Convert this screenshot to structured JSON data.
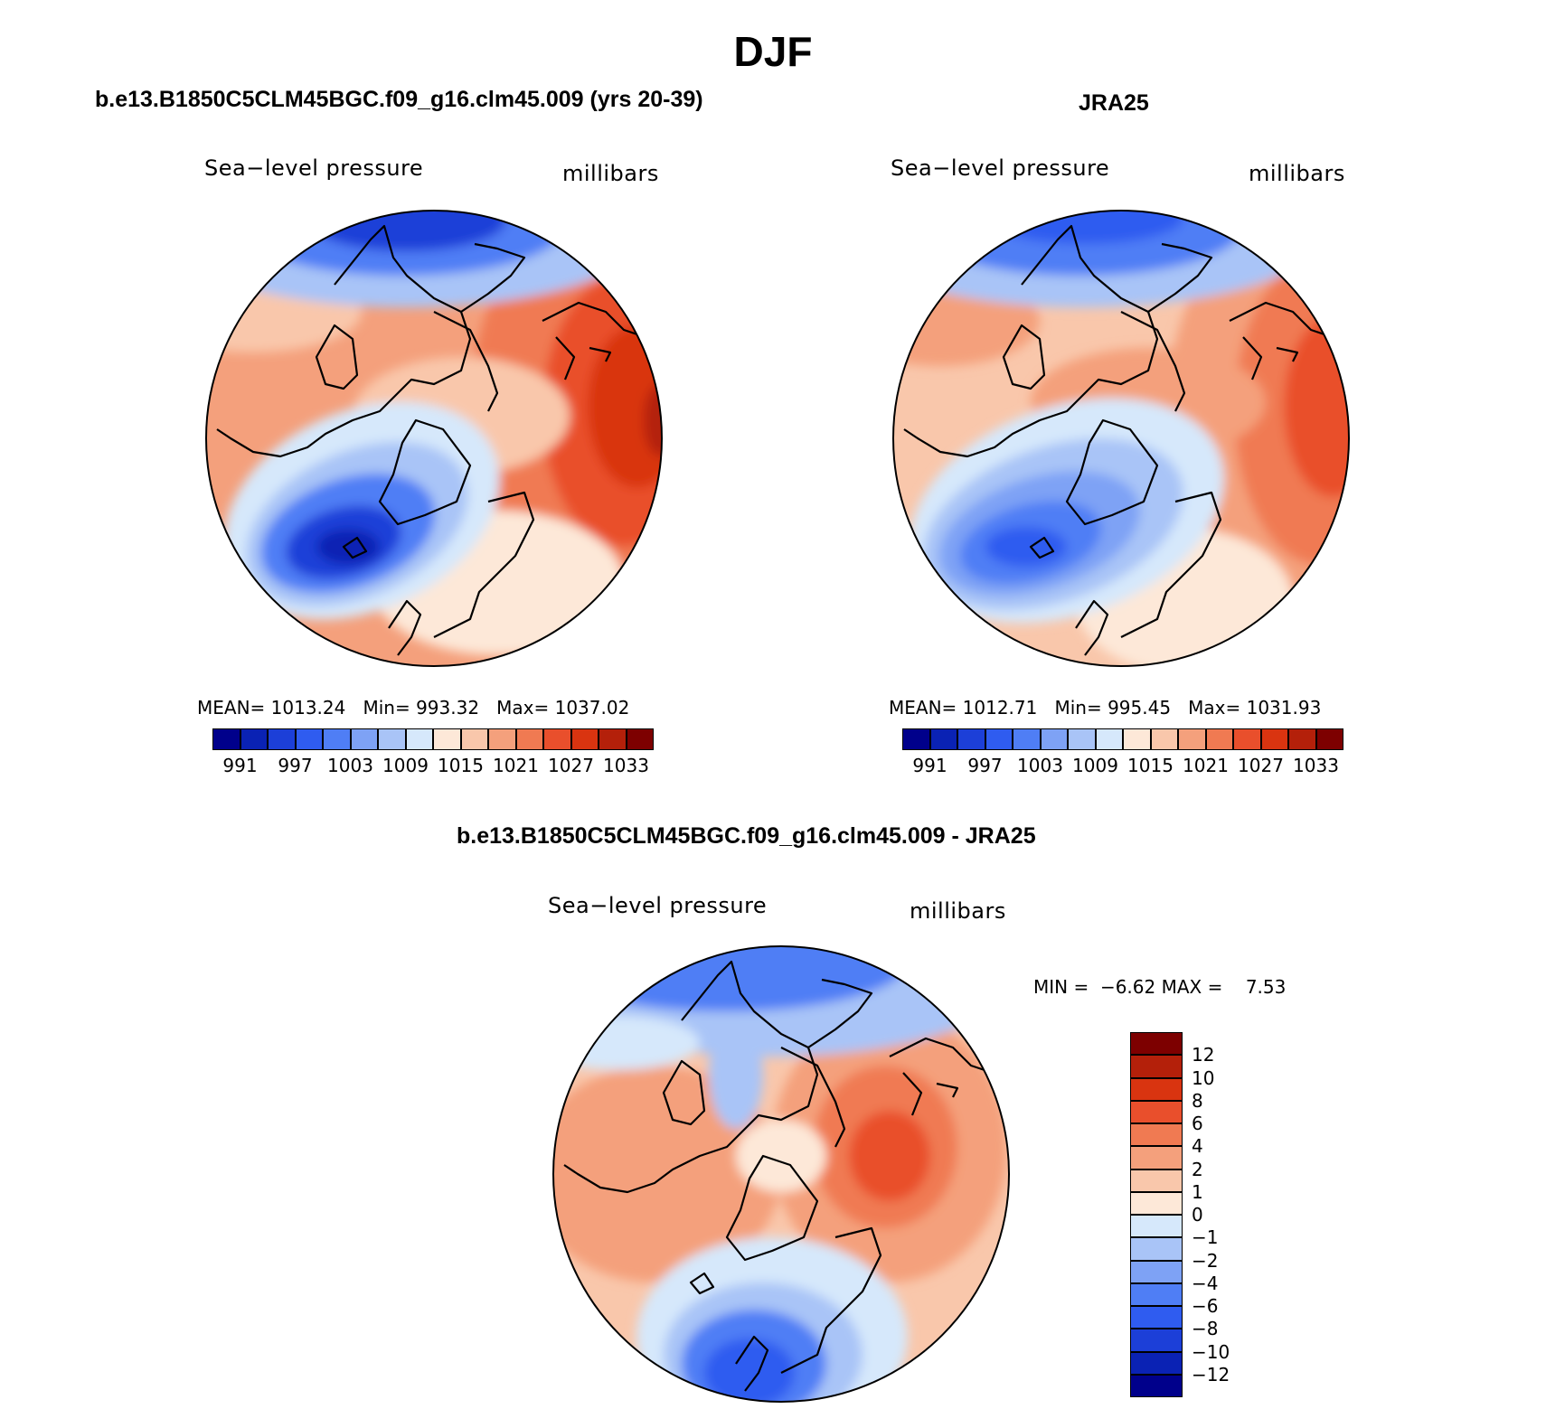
{
  "figure": {
    "season": "DJF",
    "model_title": "b.e13.B1850C5CLM45BGC.f09_g16.clm45.009 (yrs 20-39)",
    "obs_title": "JRA25",
    "diff_title": "b.e13.B1850C5CLM45BGC.f09_g16.clm45.009 - JRA25"
  },
  "panels": {
    "model": {
      "variable": "Sea−level pressure",
      "units": "millibars",
      "stats": {
        "mean_label": "MEAN=",
        "mean": "1013.24",
        "min_label": "Min=",
        "min": "993.32",
        "max_label": "Max=",
        "max": "1037.02"
      }
    },
    "obs": {
      "variable": "Sea−level pressure",
      "units": "millibars",
      "stats": {
        "mean_label": "MEAN=",
        "mean": "1012.71",
        "min_label": "Min=",
        "min": "995.45",
        "max_label": "Max=",
        "max": "1031.93"
      }
    },
    "diff": {
      "variable": "Sea−level pressure",
      "units": "millibars",
      "stats": {
        "min_label": "MIN =",
        "min": "−6.62",
        "max_label": "MAX =",
        "max": "7.53"
      }
    }
  },
  "colorbars": {
    "abs": {
      "colors": [
        "#00008b",
        "#0a22b4",
        "#1c3fd8",
        "#2f5cf0",
        "#4f7ef5",
        "#7ea2f5",
        "#a9c4f7",
        "#d6e8fb",
        "#fde8d8",
        "#f9c7ab",
        "#f4a07c",
        "#f07a52",
        "#e94f2c",
        "#d93410",
        "#b4200a",
        "#7d0000"
      ],
      "tick_labels": [
        "991",
        "997",
        "1003",
        "1009",
        "1015",
        "1021",
        "1027",
        "1033"
      ]
    },
    "diff": {
      "colors_top_to_bottom": [
        "#7d0000",
        "#b4200a",
        "#d93410",
        "#e94f2c",
        "#f07a52",
        "#f4a07c",
        "#f9c7ab",
        "#fde8d8",
        "#d6e8fb",
        "#a9c4f7",
        "#7ea2f5",
        "#4f7ef5",
        "#2f5cf0",
        "#1c3fd8",
        "#0a22b4",
        "#00008b"
      ],
      "tick_labels": [
        "12",
        "10",
        "8",
        "6",
        "4",
        "2",
        "1",
        "0",
        "−1",
        "−2",
        "−4",
        "−6",
        "−8",
        "−10",
        "−12"
      ]
    }
  }
}
